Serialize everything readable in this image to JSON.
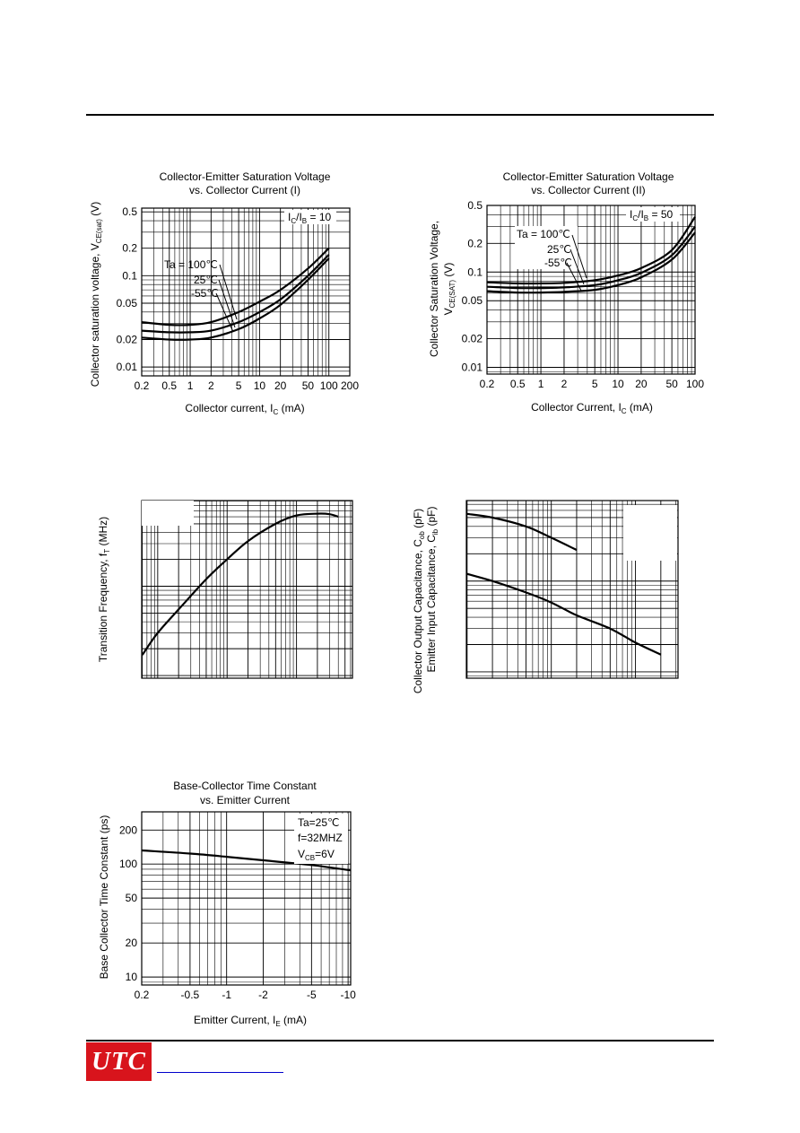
{
  "page": {
    "logo_text": "UTC"
  },
  "chart_data": [
    {
      "id": "sat1",
      "type": "line",
      "title": "Collector-Emitter Saturation Voltage",
      "subtitle": "vs. Collector Current (I)",
      "xlabel": "Collector current, I",
      "xlabel_sub": "C",
      "xlabel_unit": " (mA)",
      "ylabel": "Collector saturation voltage, V",
      "ylabel_sub": "CE(sat)",
      "ylabel_unit": " (V)",
      "x_scale": "log",
      "y_scale": "log",
      "xlim": [
        0.2,
        200
      ],
      "ylim": [
        0.008,
        0.55
      ],
      "x_ticks": [
        {
          "v": 0.2,
          "label": "0.2"
        },
        {
          "v": 0.5,
          "label": "0.5"
        },
        {
          "v": 1,
          "label": "1"
        },
        {
          "v": 2,
          "label": "2"
        },
        {
          "v": 5,
          "label": "5"
        },
        {
          "v": 10,
          "label": "10"
        },
        {
          "v": 20,
          "label": "20"
        },
        {
          "v": 50,
          "label": "50"
        },
        {
          "v": 100,
          "label": "100"
        },
        {
          "v": 200,
          "label": "200"
        }
      ],
      "y_ticks": [
        {
          "v": 0.01,
          "label": "0.01"
        },
        {
          "v": 0.02,
          "label": "0.02"
        },
        {
          "v": 0.05,
          "label": "0.05"
        },
        {
          "v": 0.1,
          "label": "0.1"
        },
        {
          "v": 0.2,
          "label": "0.2"
        },
        {
          "v": 0.5,
          "label": "0.5"
        }
      ],
      "condition": {
        "main": "I",
        "sub1": "C",
        "mid": "/I",
        "sub2": "B",
        "rest": " = 10"
      },
      "legend_labels": [
        "Ta = 100℃",
        "25℃",
        "-55℃"
      ],
      "series": [
        {
          "name": "Ta = 100℃",
          "x": [
            0.2,
            0.5,
            1,
            2,
            5,
            10,
            20,
            50,
            100
          ],
          "y": [
            0.031,
            0.029,
            0.029,
            0.031,
            0.04,
            0.052,
            0.07,
            0.12,
            0.2
          ]
        },
        {
          "name": "25℃",
          "x": [
            0.2,
            0.5,
            1,
            2,
            5,
            10,
            20,
            50,
            100
          ],
          "y": [
            0.025,
            0.024,
            0.024,
            0.025,
            0.031,
            0.04,
            0.055,
            0.1,
            0.17
          ]
        },
        {
          "name": "-55℃",
          "x": [
            0.2,
            0.5,
            1,
            2,
            5,
            10,
            20,
            50,
            100
          ],
          "y": [
            0.021,
            0.02,
            0.02,
            0.021,
            0.026,
            0.034,
            0.048,
            0.09,
            0.155
          ]
        }
      ],
      "grid": true
    },
    {
      "id": "sat2",
      "type": "line",
      "title": "Collector-Emitter Saturation Voltage",
      "subtitle": "vs. Collector Current (II)",
      "xlabel": "Collector Current, I",
      "xlabel_sub": "C",
      "xlabel_unit": " (mA)",
      "ylabel": "Collector Saturation Voltage,",
      "ylabel2": "V",
      "ylabel2_sub": "CE(SAT)",
      "ylabel2_unit": " (V)",
      "x_scale": "log",
      "y_scale": "log",
      "xlim": [
        0.2,
        100
      ],
      "ylim": [
        0.0085,
        0.5
      ],
      "x_ticks": [
        {
          "v": 0.2,
          "label": "0.2"
        },
        {
          "v": 0.5,
          "label": "0.5"
        },
        {
          "v": 1,
          "label": "1"
        },
        {
          "v": 2,
          "label": "2"
        },
        {
          "v": 5,
          "label": "5"
        },
        {
          "v": 10,
          "label": "10"
        },
        {
          "v": 20,
          "label": "20"
        },
        {
          "v": 50,
          "label": "50"
        },
        {
          "v": 100,
          "label": "100"
        }
      ],
      "y_ticks": [
        {
          "v": 0.01,
          "label": "0.01"
        },
        {
          "v": 0.02,
          "label": "0.02"
        },
        {
          "v": 0.05,
          "label": "0.05"
        },
        {
          "v": 0.1,
          "label": "0.1"
        },
        {
          "v": 0.2,
          "label": "0.2"
        },
        {
          "v": 0.5,
          "label": "0.5"
        }
      ],
      "condition": {
        "main": "I",
        "sub1": "C",
        "mid": "/I",
        "sub2": "B",
        "rest": " = 50"
      },
      "legend_labels": [
        "Ta = 100℃",
        "25℃",
        "-55℃"
      ],
      "series": [
        {
          "name": "Ta = 100℃",
          "x": [
            0.2,
            0.5,
            1,
            2,
            5,
            10,
            20,
            50,
            100
          ],
          "y": [
            0.078,
            0.076,
            0.076,
            0.077,
            0.082,
            0.092,
            0.11,
            0.17,
            0.38
          ]
        },
        {
          "name": "25℃",
          "x": [
            0.2,
            0.5,
            1,
            2,
            5,
            10,
            20,
            50,
            100
          ],
          "y": [
            0.07,
            0.068,
            0.068,
            0.069,
            0.073,
            0.082,
            0.098,
            0.15,
            0.3
          ]
        },
        {
          "name": "-55℃",
          "x": [
            0.2,
            0.5,
            1,
            2,
            5,
            10,
            20,
            50,
            100
          ],
          "y": [
            0.063,
            0.061,
            0.061,
            0.062,
            0.065,
            0.073,
            0.088,
            0.135,
            0.26
          ]
        }
      ],
      "grid": true
    },
    {
      "id": "ft",
      "type": "line",
      "ylabel": "Transition Frequency, f",
      "ylabel_sub": "T",
      "ylabel_unit": " (MHz)",
      "x_scale": "log",
      "y_scale": "log",
      "series": [
        {
          "x": [
            0.06,
            0.1,
            0.2,
            0.5,
            1,
            2,
            5,
            10,
            20,
            30,
            40
          ],
          "y": [
            0.017,
            0.03,
            0.055,
            0.12,
            0.2,
            0.32,
            0.5,
            0.62,
            0.65,
            0.64,
            0.6
          ]
        }
      ],
      "grid": true
    },
    {
      "id": "cap",
      "type": "line",
      "ylabel": "Collector Output Capacitance, C",
      "ylabel_sub": "ob",
      "ylabel_unit": " (pF)",
      "ylabel2": "Emitter Input Capacitance, C",
      "ylabel2_sub": "ib",
      "ylabel2_unit": " (pF)",
      "x_scale": "log",
      "y_scale": "log",
      "series": [
        {
          "x": [
            1,
            2,
            5,
            10,
            20
          ],
          "y": [
            0.55,
            0.5,
            0.4,
            0.3,
            0.22
          ]
        },
        {
          "x": [
            1,
            2,
            5,
            10,
            20,
            50,
            100,
            200
          ],
          "y": [
            0.12,
            0.1,
            0.075,
            0.058,
            0.042,
            0.03,
            0.021,
            0.0155
          ]
        }
      ],
      "grid": true
    },
    {
      "id": "bct",
      "type": "line",
      "title": "Base-Collector Time Constant",
      "subtitle": "vs. Emitter Current",
      "xlabel": "Emitter Current, I",
      "xlabel_sub": "E",
      "xlabel_unit": " (mA)",
      "ylabel": "Base Collector Time Constant (ps)",
      "x_scale": "log",
      "y_scale": "log",
      "xlim": [
        0.2,
        10.5
      ],
      "ylim": [
        8.5,
        290
      ],
      "x_ticks": [
        {
          "v": 0.2,
          "label": "0.2"
        },
        {
          "v": 0.5,
          "label": "-0.5"
        },
        {
          "v": 1,
          "label": "-1"
        },
        {
          "v": 2,
          "label": "-2"
        },
        {
          "v": 5,
          "label": "-5"
        },
        {
          "v": 10,
          "label": "-10"
        }
      ],
      "y_ticks": [
        {
          "v": 10,
          "label": "10"
        },
        {
          "v": 20,
          "label": "20"
        },
        {
          "v": 50,
          "label": "50"
        },
        {
          "v": 100,
          "label": "100"
        },
        {
          "v": 200,
          "label": "200"
        }
      ],
      "conditions": [
        "Ta=25℃",
        "f=32MHZ"
      ],
      "cond3": {
        "main": "V",
        "sub": "CB",
        "rest": "=6V"
      },
      "series": [
        {
          "x": [
            0.2,
            0.5,
            1,
            2,
            5,
            10.5
          ],
          "y": [
            132,
            124,
            116,
            108,
            98,
            88
          ]
        }
      ],
      "grid": true
    }
  ]
}
